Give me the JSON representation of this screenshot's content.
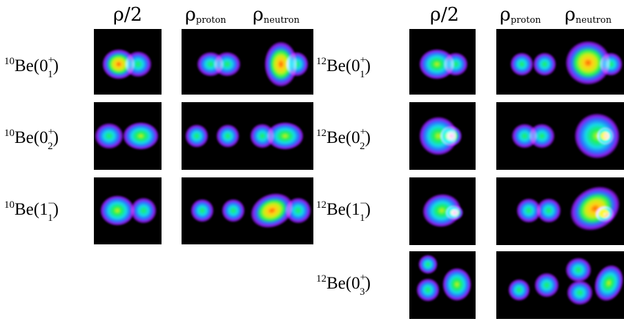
{
  "headers": {
    "rho_half": "ρ/2",
    "rho": "ρ",
    "proton": "proton",
    "neutron": "neutron"
  },
  "nuclei": {
    "be10": {
      "mass": "10",
      "symbol": "Be"
    },
    "be12": {
      "mass": "12",
      "symbol": "Be"
    }
  },
  "states": {
    "be10": [
      {
        "j": "0",
        "sub": "1",
        "parity": "+"
      },
      {
        "j": "0",
        "sub": "2",
        "parity": "+"
      },
      {
        "j": "1",
        "sub": "1",
        "parity": "−"
      }
    ],
    "be12": [
      {
        "j": "0",
        "sub": "1",
        "parity": "+"
      },
      {
        "j": "0",
        "sub": "2",
        "parity": "+"
      },
      {
        "j": "1",
        "sub": "1",
        "parity": "−"
      },
      {
        "j": "0",
        "sub": "3",
        "parity": "+"
      }
    ]
  },
  "colors": {
    "panel_background": "#000000",
    "colormap": [
      "#000000",
      "#3c0070",
      "#8a1ae8",
      "#2f6cff",
      "#12d9e6",
      "#1ff05c",
      "#c8f016",
      "#ffd11a",
      "#ff6a00",
      "#ff1040",
      "#ffd6f2"
    ]
  }
}
